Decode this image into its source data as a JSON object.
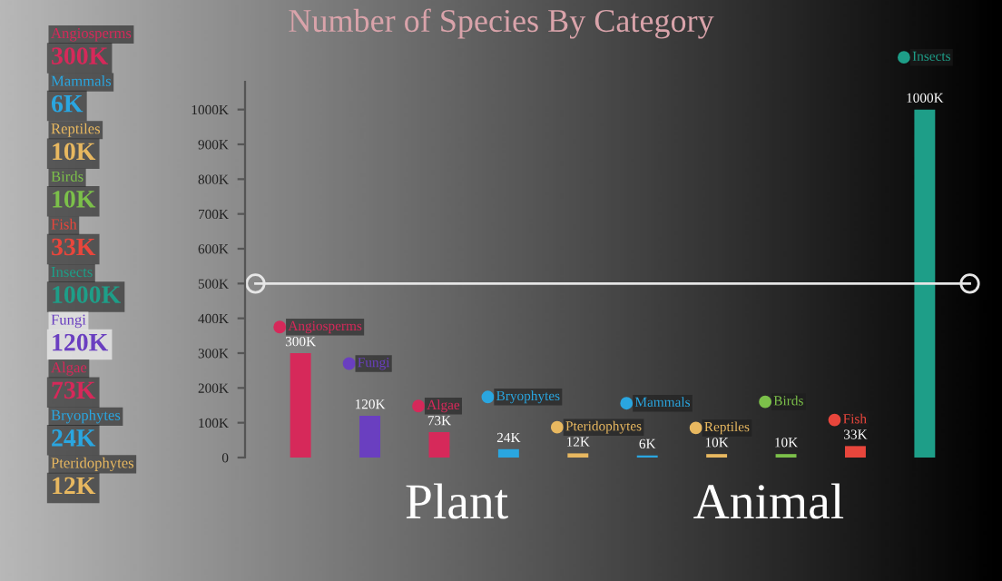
{
  "chart_data": {
    "type": "bar",
    "title": "Number of Species By Category",
    "categories": [
      "Angiosperms",
      "Fungi",
      "Algae",
      "Bryophytes",
      "Pteridophytes",
      "Mammals",
      "Reptiles",
      "Birds",
      "Fish",
      "Insects"
    ],
    "values": [
      300,
      120,
      73,
      24,
      12,
      6,
      10,
      10,
      33,
      1000
    ],
    "value_labels": [
      "300K",
      "120K",
      "73K",
      "24K",
      "12K",
      "6K",
      "10K",
      "10K",
      "33K",
      "1000K"
    ],
    "colors": [
      "#d6295a",
      "#6a3fc0",
      "#d6295a",
      "#2aa6e0",
      "#e8b860",
      "#2aa6e0",
      "#e8b860",
      "#7cc04a",
      "#e8463c",
      "#1e9e88"
    ],
    "ylim": [
      0,
      1080
    ],
    "yticks": [
      0,
      {
        "value": 100,
        "label": "100K"
      },
      {
        "value": 200,
        "label": "200K"
      },
      {
        "value": 300,
        "label": "300K"
      },
      {
        "value": 400,
        "label": "400K"
      },
      {
        "value": 500,
        "label": "500K"
      },
      {
        "value": 600,
        "label": "600K"
      },
      {
        "value": 700,
        "label": "700K"
      },
      {
        "value": 800,
        "label": "800K"
      },
      {
        "value": 900,
        "label": "900K"
      },
      {
        "value": 1000,
        "label": "1000K"
      }
    ],
    "ref_lines": [
      {
        "axis": "y",
        "value": 500,
        "color": "#e6e6e6"
      }
    ],
    "annotations": [
      "Plant",
      "Animal"
    ],
    "grid": false
  }
}
